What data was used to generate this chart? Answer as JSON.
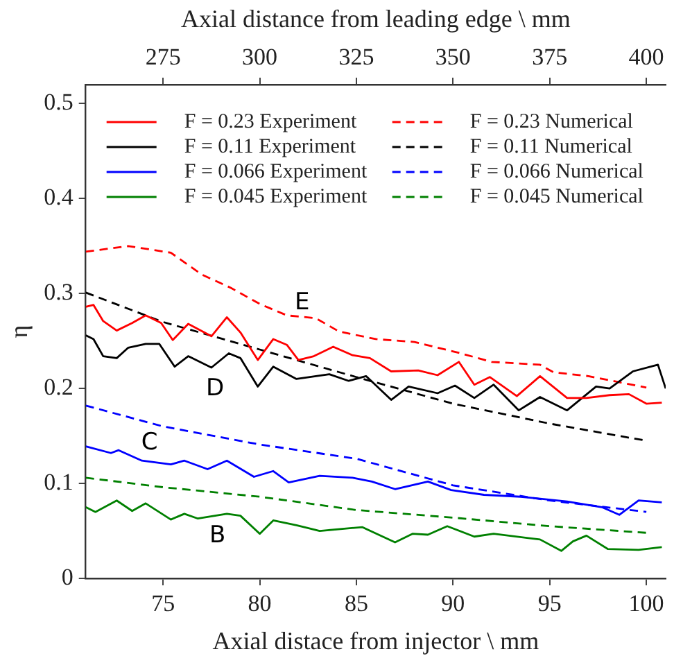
{
  "chart_data": {
    "type": "line",
    "xlabel": "Axial distace from injector \\ mm",
    "ylabel": "η",
    "x2label": "Axial distance from leading edge \\ mm",
    "xlim": [
      71,
      101
    ],
    "xticks": [
      75,
      80,
      85,
      90,
      95,
      100
    ],
    "x2lim": [
      255,
      405
    ],
    "x2ticks": [
      275,
      300,
      325,
      350,
      375,
      400
    ],
    "ylim": [
      0,
      0.52
    ],
    "yticks": [
      0,
      0.1,
      0.2,
      0.3,
      0.4,
      0.5
    ],
    "grid": false,
    "legend": "top",
    "marker": "none",
    "series": [
      {
        "name": "F = 0.23 Experiment",
        "color": "#ff0000",
        "line_style": "solid",
        "x": [
          71.0,
          71.4,
          71.9,
          72.6,
          73.4,
          74.1,
          74.9,
          75.5,
          76.3,
          77.5,
          78.3,
          79.0,
          79.9,
          80.7,
          81.4,
          82.0,
          82.8,
          83.8,
          84.8,
          85.7,
          86.8,
          88.2,
          89.2,
          90.3,
          91.1,
          91.9,
          93.3,
          94.5,
          95.9,
          96.9,
          98.1,
          99.1,
          100.0,
          100.8
        ],
        "values": [
          0.286,
          0.288,
          0.271,
          0.261,
          0.269,
          0.277,
          0.269,
          0.251,
          0.268,
          0.255,
          0.275,
          0.259,
          0.23,
          0.252,
          0.246,
          0.23,
          0.234,
          0.244,
          0.235,
          0.232,
          0.218,
          0.219,
          0.214,
          0.228,
          0.204,
          0.212,
          0.192,
          0.213,
          0.19,
          0.19,
          0.193,
          0.194,
          0.184,
          0.185
        ]
      },
      {
        "name": "F = 0.11 Experiment",
        "color": "#000000",
        "line_style": "solid",
        "x": [
          71.0,
          71.4,
          71.9,
          72.6,
          73.2,
          74.1,
          74.8,
          75.6,
          76.3,
          77.5,
          78.4,
          79.0,
          79.9,
          80.7,
          81.9,
          83.6,
          84.6,
          85.5,
          86.8,
          87.7,
          89.2,
          90.1,
          91.1,
          92.1,
          93.4,
          94.5,
          95.9,
          97.4,
          98.1,
          99.3,
          100.6,
          101.0
        ],
        "values": [
          0.256,
          0.252,
          0.234,
          0.232,
          0.243,
          0.247,
          0.247,
          0.223,
          0.234,
          0.222,
          0.237,
          0.232,
          0.202,
          0.223,
          0.21,
          0.215,
          0.208,
          0.213,
          0.188,
          0.202,
          0.195,
          0.203,
          0.19,
          0.204,
          0.177,
          0.191,
          0.177,
          0.202,
          0.2,
          0.218,
          0.225,
          0.2
        ]
      },
      {
        "name": "F = 0.066 Experiment",
        "color": "#0000ff",
        "line_style": "solid",
        "x": [
          71.0,
          72.3,
          72.7,
          73.9,
          75.4,
          76.1,
          77.3,
          78.3,
          79.7,
          80.7,
          81.5,
          83.1,
          84.8,
          85.8,
          87.0,
          88.7,
          89.9,
          91.6,
          93.5,
          95.9,
          97.7,
          98.6,
          99.6,
          100.8
        ],
        "values": [
          0.139,
          0.132,
          0.135,
          0.124,
          0.12,
          0.124,
          0.115,
          0.124,
          0.107,
          0.113,
          0.101,
          0.108,
          0.106,
          0.102,
          0.094,
          0.102,
          0.093,
          0.088,
          0.086,
          0.081,
          0.075,
          0.067,
          0.082,
          0.08
        ]
      },
      {
        "name": "F = 0.045 Experiment",
        "color": "#008000",
        "line_style": "solid",
        "x": [
          71.0,
          71.5,
          72.6,
          73.4,
          74.1,
          75.4,
          76.1,
          76.8,
          78.3,
          79.0,
          80.0,
          80.7,
          81.9,
          83.1,
          85.3,
          87.0,
          87.9,
          88.7,
          89.7,
          91.1,
          92.1,
          94.5,
          95.6,
          96.2,
          96.9,
          98.0,
          99.6,
          100.8
        ],
        "values": [
          0.075,
          0.07,
          0.082,
          0.071,
          0.079,
          0.062,
          0.068,
          0.063,
          0.068,
          0.066,
          0.047,
          0.061,
          0.056,
          0.05,
          0.054,
          0.038,
          0.047,
          0.046,
          0.055,
          0.044,
          0.047,
          0.041,
          0.029,
          0.039,
          0.045,
          0.031,
          0.03,
          0.033
        ]
      },
      {
        "name": "F = 0.23 Numerical",
        "color": "#ff0000",
        "line_style": "dashed",
        "x": [
          71.0,
          73.2,
          75.4,
          77.0,
          78.5,
          80.0,
          81.4,
          82.9,
          84.1,
          86.0,
          88.0,
          90.4,
          92.0,
          94.5,
          95.2,
          97.0,
          100.0
        ],
        "values": [
          0.344,
          0.35,
          0.343,
          0.32,
          0.306,
          0.289,
          0.277,
          0.274,
          0.26,
          0.252,
          0.249,
          0.237,
          0.228,
          0.225,
          0.217,
          0.213,
          0.201
        ]
      },
      {
        "name": "F = 0.11 Numerical",
        "color": "#000000",
        "line_style": "dashed",
        "x": [
          71,
          75,
          80,
          85,
          90,
          95,
          100
        ],
        "values": [
          0.301,
          0.27,
          0.241,
          0.212,
          0.184,
          0.163,
          0.145
        ]
      },
      {
        "name": "F = 0.066 Numerical",
        "color": "#0000ff",
        "line_style": "dashed",
        "x": [
          71,
          75,
          80,
          85,
          90,
          95,
          100
        ],
        "values": [
          0.182,
          0.16,
          0.141,
          0.126,
          0.098,
          0.082,
          0.07
        ]
      },
      {
        "name": "F = 0.045 Numerical",
        "color": "#008000",
        "line_style": "dashed",
        "x": [
          71,
          75,
          80,
          85,
          90,
          95,
          100
        ],
        "values": [
          0.106,
          0.096,
          0.086,
          0.072,
          0.064,
          0.055,
          0.048
        ]
      }
    ],
    "annotations": [
      "E",
      "D",
      "C",
      "B"
    ]
  }
}
